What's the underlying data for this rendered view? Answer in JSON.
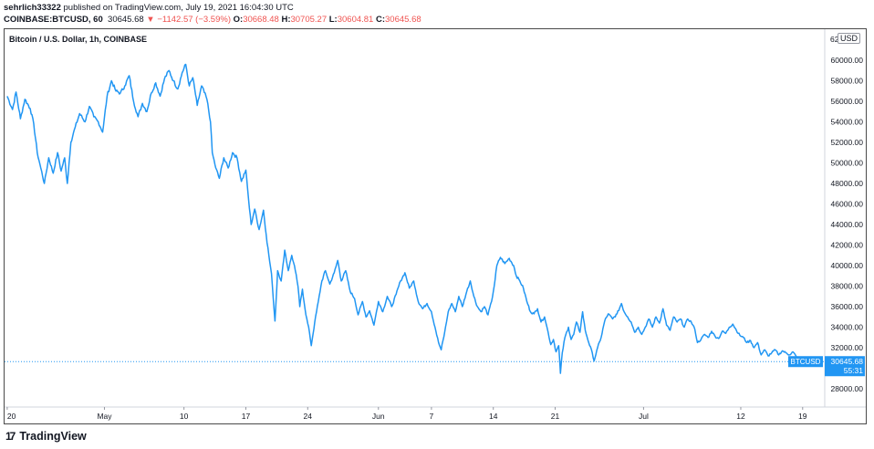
{
  "header": {
    "user": "sehrlich33322",
    "published": "published on TradingView.com, July 19, 2021 16:04:30 UTC",
    "symbol": "COINBASE:BTCUSD, 60",
    "last": "30645.68",
    "arrow": "▼",
    "change": "−1142.57 (−3.59%)",
    "o_label": "O:",
    "o_val": "30668.48",
    "h_label": "H:",
    "h_val": "30705.27",
    "l_label": "L:",
    "l_val": "30604.81",
    "c_label": "C:",
    "c_val": "30645.68"
  },
  "chart_title": "Bitcoin / U.S. Dollar, 1h, COINBASE",
  "currency_badge": "USD",
  "price_label": {
    "symbol": "BTCUSD",
    "price": "30645.68",
    "countdown": "55:31"
  },
  "logo_mark": "17",
  "brand": "TradingView",
  "colors": {
    "line": "#2196f3",
    "down": "#ef5350",
    "text": "#131722",
    "dotted": "#2196f3"
  },
  "chart_data": {
    "type": "line",
    "title": "Bitcoin / U.S. Dollar, 1h, COINBASE",
    "xlabel": "",
    "ylabel": "",
    "ylim": [
      26000,
      62000
    ],
    "y_ticks": [
      28000,
      30000,
      32000,
      34000,
      36000,
      38000,
      40000,
      42000,
      44000,
      46000,
      48000,
      50000,
      52000,
      54000,
      56000,
      58000,
      60000
    ],
    "y_tick_labels": [
      "28000.00",
      "30000.00",
      "32000.00",
      "34000.00",
      "36000.00",
      "38000.00",
      "40000.00",
      "42000.00",
      "44000.00",
      "46000.00",
      "48000.00",
      "50000.00",
      "52000.00",
      "54000.00",
      "56000.00",
      "58000.00",
      "60000.00"
    ],
    "y_top_partial_label": "62",
    "x_ticks": [
      {
        "day": 0,
        "label": "20"
      },
      {
        "day": 11,
        "label": "May"
      },
      {
        "day": 20,
        "label": "10"
      },
      {
        "day": 27,
        "label": "17"
      },
      {
        "day": 34,
        "label": "24"
      },
      {
        "day": 42,
        "label": "Jun"
      },
      {
        "day": 48,
        "label": "7"
      },
      {
        "day": 55,
        "label": "14"
      },
      {
        "day": 62,
        "label": "21"
      },
      {
        "day": 72,
        "label": "Jul"
      },
      {
        "day": 83,
        "label": "12"
      },
      {
        "day": 90,
        "label": "19"
      }
    ],
    "x_range_days": [
      -0.3,
      92.5
    ],
    "series": [
      {
        "points": [
          [
            0,
            56500
          ],
          [
            0.6,
            55200
          ],
          [
            1.0,
            56900
          ],
          [
            1.5,
            54300
          ],
          [
            2.0,
            56200
          ],
          [
            2.6,
            55300
          ],
          [
            3.0,
            53800
          ],
          [
            3.4,
            51000
          ],
          [
            3.8,
            49500
          ],
          [
            4.2,
            48000
          ],
          [
            4.7,
            50500
          ],
          [
            5.2,
            49000
          ],
          [
            5.7,
            51000
          ],
          [
            6.1,
            49200
          ],
          [
            6.5,
            50500
          ],
          [
            6.8,
            48000
          ],
          [
            7.2,
            52000
          ],
          [
            7.7,
            53500
          ],
          [
            8.2,
            54800
          ],
          [
            8.8,
            54000
          ],
          [
            9.3,
            55500
          ],
          [
            9.8,
            54500
          ],
          [
            10.3,
            54000
          ],
          [
            10.8,
            53000
          ],
          [
            11.3,
            56500
          ],
          [
            11.8,
            58000
          ],
          [
            12.3,
            57000
          ],
          [
            12.8,
            56800
          ],
          [
            13.3,
            57500
          ],
          [
            13.8,
            58500
          ],
          [
            14.3,
            56000
          ],
          [
            14.8,
            54500
          ],
          [
            15.3,
            55800
          ],
          [
            15.8,
            55000
          ],
          [
            16.3,
            56800
          ],
          [
            16.8,
            57800
          ],
          [
            17.3,
            56500
          ],
          [
            17.8,
            58200
          ],
          [
            18.3,
            59000
          ],
          [
            18.8,
            58000
          ],
          [
            19.3,
            57200
          ],
          [
            19.8,
            58800
          ],
          [
            20.2,
            59600
          ],
          [
            20.6,
            57500
          ],
          [
            21.0,
            58300
          ],
          [
            21.5,
            55600
          ],
          [
            22.0,
            57500
          ],
          [
            22.6,
            56200
          ],
          [
            23.0,
            54000
          ],
          [
            23.2,
            51000
          ],
          [
            23.6,
            49500
          ],
          [
            24.0,
            48500
          ],
          [
            24.5,
            50500
          ],
          [
            25.0,
            49500
          ],
          [
            25.5,
            51000
          ],
          [
            26.0,
            50500
          ],
          [
            26.5,
            48200
          ],
          [
            27.0,
            49300
          ],
          [
            27.3,
            46500
          ],
          [
            27.6,
            44000
          ],
          [
            28.0,
            45500
          ],
          [
            28.5,
            43500
          ],
          [
            29.0,
            45400
          ],
          [
            29.3,
            43000
          ],
          [
            29.6,
            41000
          ],
          [
            29.9,
            39200
          ],
          [
            30.1,
            36800
          ],
          [
            30.3,
            34600
          ],
          [
            30.6,
            39500
          ],
          [
            31.0,
            38500
          ],
          [
            31.4,
            41500
          ],
          [
            31.8,
            39500
          ],
          [
            32.2,
            41000
          ],
          [
            32.6,
            39500
          ],
          [
            32.9,
            38000
          ],
          [
            33.1,
            36000
          ],
          [
            33.4,
            37700
          ],
          [
            33.8,
            35200
          ],
          [
            34.2,
            33500
          ],
          [
            34.4,
            32200
          ],
          [
            34.8,
            34500
          ],
          [
            35.2,
            36500
          ],
          [
            35.6,
            38500
          ],
          [
            36.0,
            39500
          ],
          [
            36.5,
            38200
          ],
          [
            37.0,
            39300
          ],
          [
            37.4,
            40500
          ],
          [
            37.8,
            38500
          ],
          [
            38.3,
            39500
          ],
          [
            38.8,
            37500
          ],
          [
            39.3,
            36800
          ],
          [
            39.7,
            35200
          ],
          [
            40.2,
            36500
          ],
          [
            40.6,
            35000
          ],
          [
            41.0,
            35600
          ],
          [
            41.5,
            34200
          ],
          [
            42.0,
            36500
          ],
          [
            42.5,
            35500
          ],
          [
            43.0,
            37000
          ],
          [
            43.5,
            36000
          ],
          [
            44.0,
            37200
          ],
          [
            44.5,
            38500
          ],
          [
            45.0,
            39300
          ],
          [
            45.5,
            37800
          ],
          [
            46.0,
            38500
          ],
          [
            46.5,
            36500
          ],
          [
            47.0,
            35800
          ],
          [
            47.5,
            36300
          ],
          [
            48.0,
            35500
          ],
          [
            48.4,
            34000
          ],
          [
            48.8,
            32500
          ],
          [
            49.1,
            31800
          ],
          [
            49.5,
            33500
          ],
          [
            49.9,
            35500
          ],
          [
            50.3,
            36300
          ],
          [
            50.7,
            35500
          ],
          [
            51.1,
            37000
          ],
          [
            51.5,
            36000
          ],
          [
            52.0,
            37500
          ],
          [
            52.4,
            38500
          ],
          [
            52.8,
            37000
          ],
          [
            53.2,
            36000
          ],
          [
            53.6,
            35500
          ],
          [
            54.0,
            36000
          ],
          [
            54.4,
            35200
          ],
          [
            54.8,
            36500
          ],
          [
            55.1,
            38000
          ],
          [
            55.4,
            40000
          ],
          [
            55.8,
            40800
          ],
          [
            56.3,
            40200
          ],
          [
            56.8,
            40700
          ],
          [
            57.3,
            40000
          ],
          [
            57.6,
            39000
          ],
          [
            58.0,
            38500
          ],
          [
            58.4,
            37800
          ],
          [
            58.8,
            36500
          ],
          [
            59.2,
            35500
          ],
          [
            59.6,
            35300
          ],
          [
            60.0,
            35800
          ],
          [
            60.4,
            34500
          ],
          [
            60.8,
            35000
          ],
          [
            61.2,
            33500
          ],
          [
            61.5,
            32300
          ],
          [
            61.8,
            32800
          ],
          [
            62.1,
            31600
          ],
          [
            62.4,
            32200
          ],
          [
            62.6,
            29500
          ],
          [
            62.8,
            31500
          ],
          [
            63.1,
            33000
          ],
          [
            63.5,
            34000
          ],
          [
            63.8,
            32800
          ],
          [
            64.1,
            33300
          ],
          [
            64.4,
            34500
          ],
          [
            64.8,
            33500
          ],
          [
            65.1,
            35500
          ],
          [
            65.4,
            33700
          ],
          [
            65.8,
            32500
          ],
          [
            66.2,
            31500
          ],
          [
            66.4,
            30700
          ],
          [
            66.8,
            32000
          ],
          [
            67.2,
            33000
          ],
          [
            67.6,
            34600
          ],
          [
            68.0,
            35300
          ],
          [
            68.5,
            34800
          ],
          [
            69.0,
            35300
          ],
          [
            69.5,
            36300
          ],
          [
            69.8,
            35500
          ],
          [
            70.2,
            35000
          ],
          [
            70.6,
            34500
          ],
          [
            71.0,
            33500
          ],
          [
            71.4,
            34000
          ],
          [
            71.8,
            33300
          ],
          [
            72.2,
            34000
          ],
          [
            72.6,
            34800
          ],
          [
            73.0,
            34000
          ],
          [
            73.4,
            35000
          ],
          [
            73.8,
            34400
          ],
          [
            74.2,
            35800
          ],
          [
            74.6,
            34200
          ],
          [
            75.0,
            33700
          ],
          [
            75.4,
            35000
          ],
          [
            75.8,
            34500
          ],
          [
            76.2,
            34800
          ],
          [
            76.6,
            34000
          ],
          [
            77.0,
            34800
          ],
          [
            77.4,
            34500
          ],
          [
            77.8,
            33800
          ],
          [
            78.1,
            32500
          ],
          [
            78.5,
            32800
          ],
          [
            78.9,
            33300
          ],
          [
            79.3,
            33000
          ],
          [
            79.7,
            33600
          ],
          [
            80.1,
            33100
          ],
          [
            80.5,
            32900
          ],
          [
            80.9,
            33600
          ],
          [
            81.3,
            33400
          ],
          [
            81.7,
            34000
          ],
          [
            82.1,
            34300
          ],
          [
            82.5,
            33700
          ],
          [
            82.9,
            33200
          ],
          [
            83.3,
            33000
          ],
          [
            83.7,
            32500
          ],
          [
            84.1,
            32700
          ],
          [
            84.5,
            32000
          ],
          [
            84.9,
            32500
          ],
          [
            85.3,
            31300
          ],
          [
            85.7,
            31800
          ],
          [
            86.1,
            31200
          ],
          [
            86.5,
            31500
          ],
          [
            86.9,
            31800
          ],
          [
            87.3,
            31300
          ],
          [
            87.7,
            31700
          ],
          [
            88.1,
            31500
          ],
          [
            88.5,
            31300
          ],
          [
            88.9,
            31600
          ],
          [
            89.3,
            31100
          ],
          [
            89.7,
            30900
          ],
          [
            90.0,
            30646
          ]
        ]
      }
    ],
    "last_price": 30645.68
  }
}
